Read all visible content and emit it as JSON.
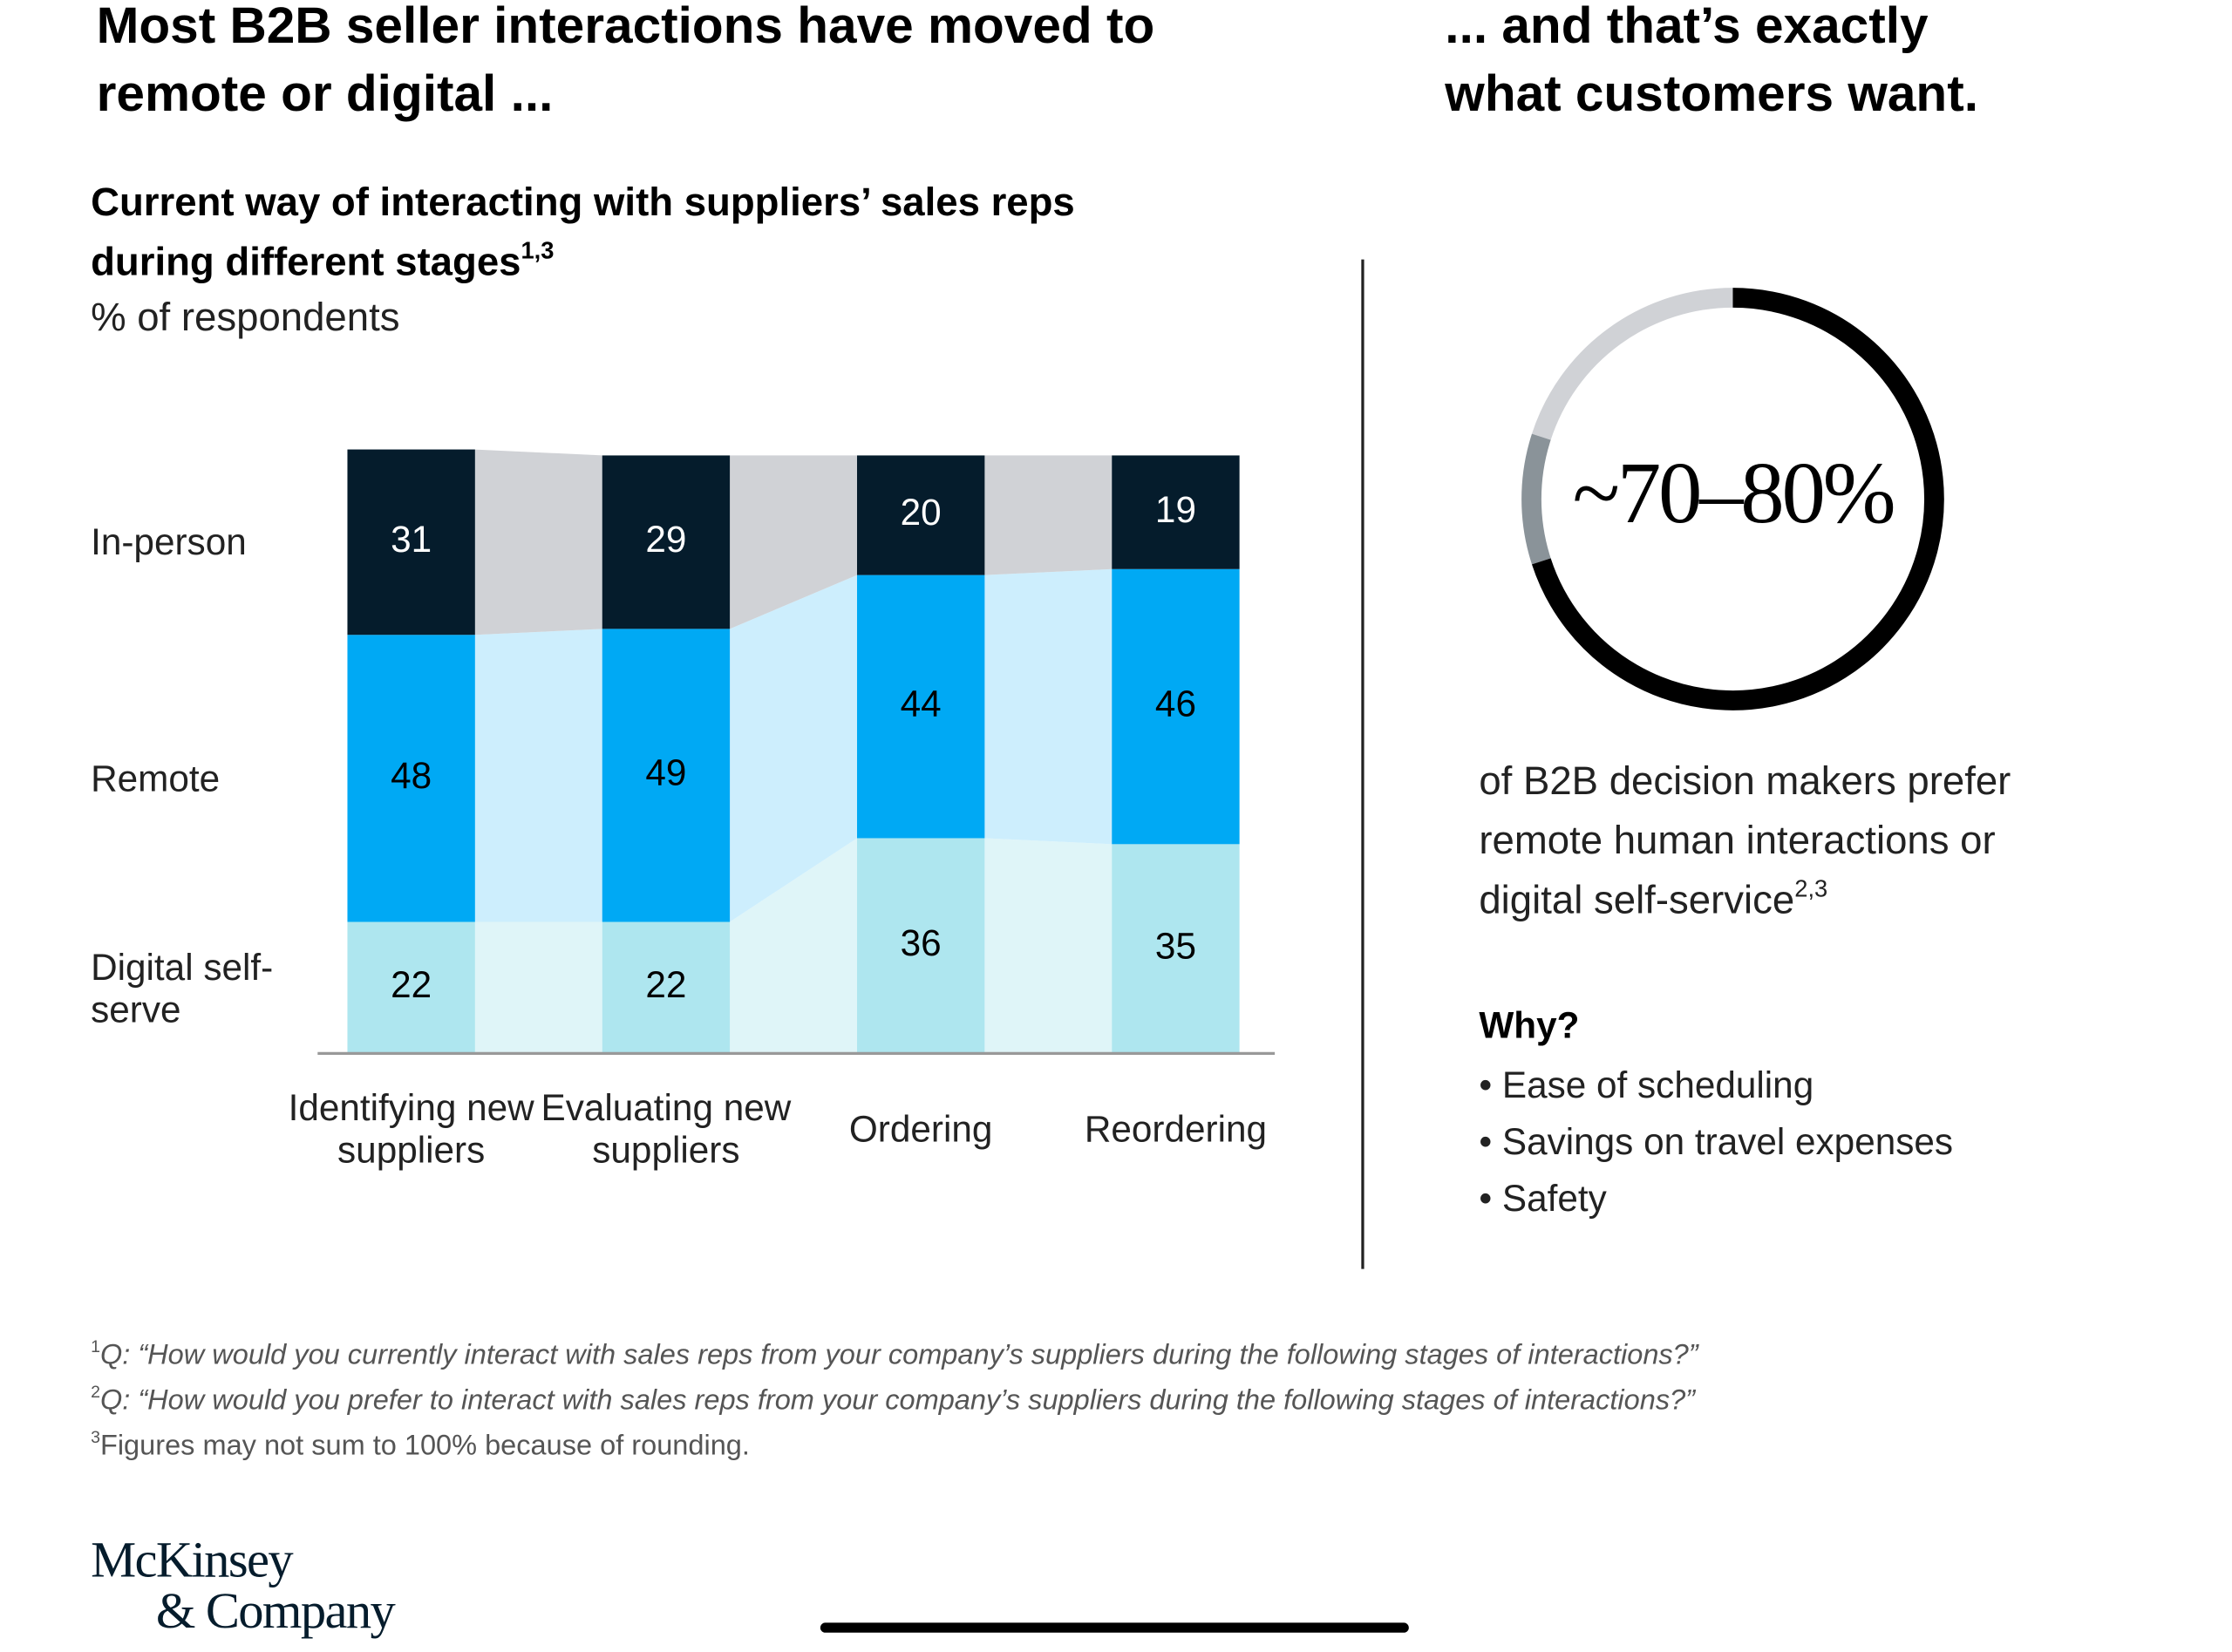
{
  "headline_left": "Most B2B seller interactions have moved to remote or digital ...",
  "headline_right": "... and that’s exactly what customers want.",
  "chart_data": {
    "type": "stacked-bar",
    "title": "Current way of interacting with suppliers’ sales reps during different stages",
    "title_superscript": "1,3",
    "subtitle": "% of respondents",
    "categories": [
      "Identifying new suppliers",
      "Evaluating new suppliers",
      "Ordering",
      "Reordering"
    ],
    "series": [
      {
        "name": "Digital self-serve",
        "color": "#aee6ef",
        "band_color": "#dff5f8",
        "label_color": "#000000",
        "values": [
          22,
          22,
          36,
          35
        ]
      },
      {
        "name": "Remote",
        "color": "#00a9f4",
        "band_color": "#cdeefd",
        "label_color": "#000000",
        "values": [
          48,
          49,
          44,
          46
        ]
      },
      {
        "name": "In-person",
        "color": "#051c2c",
        "band_color": "#d0d2d6",
        "label_color": "#ffffff",
        "values": [
          31,
          29,
          20,
          19
        ]
      }
    ]
  },
  "callout": {
    "value_label": "~70–80%",
    "range": [
      70,
      80
    ],
    "text": "of B2B decision makers prefer remote human interactions or digital self-service",
    "superscript": "2,3",
    "why_title": "Why?",
    "reasons": [
      "Ease of scheduling",
      "Savings on travel expenses",
      "Safety"
    ]
  },
  "footnotes": [
    {
      "mark": "1",
      "text": "Q: “How would you currently interact with sales reps from your company’s suppliers during the following stages of interactions?”"
    },
    {
      "mark": "2",
      "text": "Q: “How would you prefer to interact with sales reps from your company’s suppliers during the following stages of interactions?”"
    },
    {
      "mark": "3",
      "text": "Figures may not sum to 100% because of rounding."
    }
  ],
  "logo": [
    "McKinsey",
    "& Company"
  ]
}
